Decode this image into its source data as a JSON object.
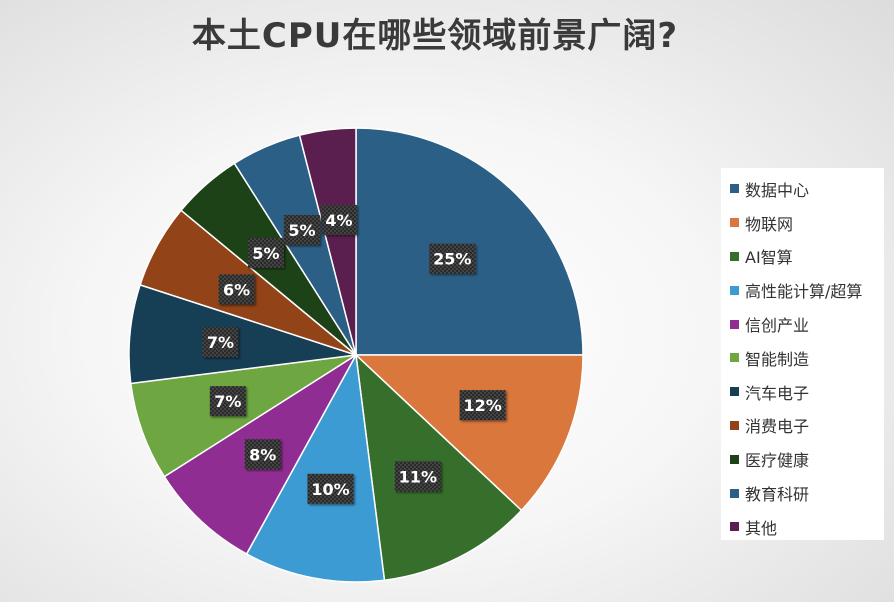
{
  "chart_data": {
    "type": "pie",
    "title": "本土CPU在哪些领域前景广阔?",
    "legend_position": "right",
    "categories": [
      "数据中心",
      "物联网",
      "AI智算",
      "高性能计算/超算",
      "信创产业",
      "智能制造",
      "汽车电子",
      "消费电子",
      "医疗健康",
      "教育科研",
      "其他"
    ],
    "values": [
      25,
      12,
      11,
      10,
      8,
      7,
      7,
      6,
      5,
      5,
      4
    ],
    "labels": [
      "25%",
      "12%",
      "11%",
      "10%",
      "8%",
      "7%",
      "7%",
      "6%",
      "5%",
      "5%",
      "4%"
    ],
    "colors": [
      "#2c5f86",
      "#d9773d",
      "#366e2c",
      "#3d9bd4",
      "#8f2d92",
      "#6ea742",
      "#163e55",
      "#924318",
      "#1e4218",
      "#2c5f86",
      "#5a1f4e"
    ]
  }
}
